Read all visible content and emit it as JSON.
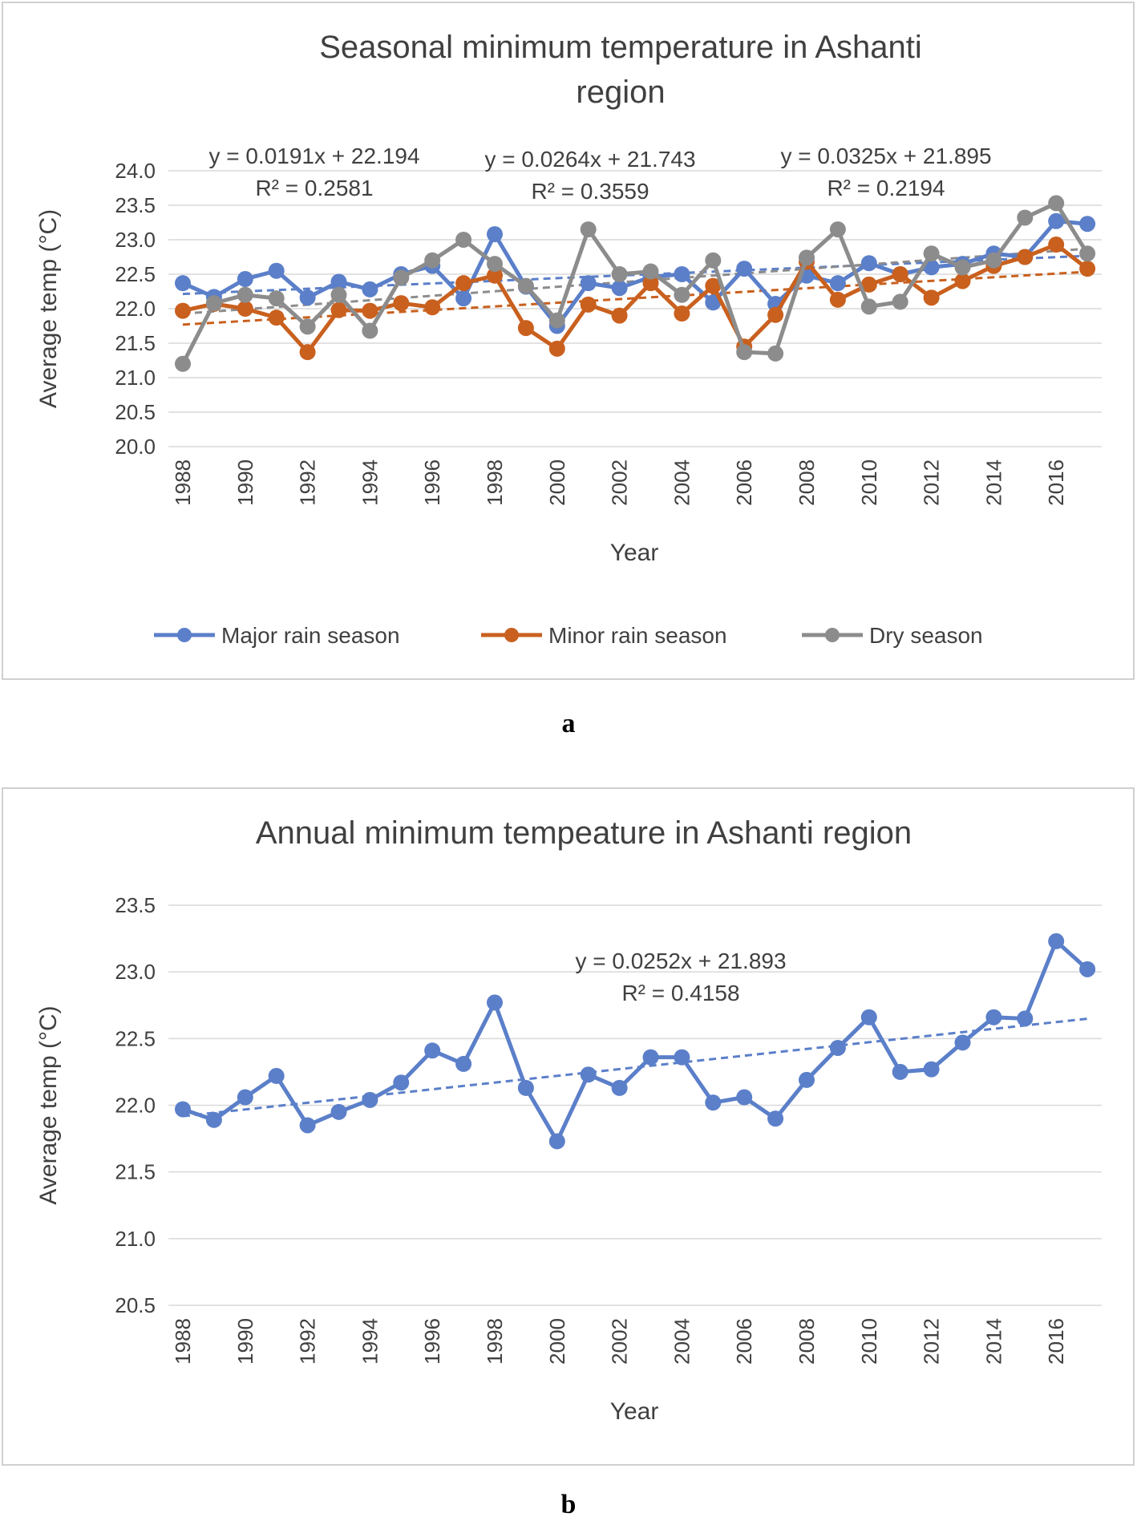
{
  "figure": {
    "label_a": "a",
    "label_b": "b"
  },
  "colors": {
    "major": "#5b7fc9",
    "minor": "#c9601e",
    "dry": "#8c8c8c",
    "grid": "#d9d9d9",
    "text": "#404040"
  },
  "chart_data": [
    {
      "type": "line",
      "title": "Seasonal minimum temperature in Ashanti region",
      "title_lines": [
        "Seasonal minimum temperature in Ashanti",
        "region"
      ],
      "xlabel": "Year",
      "ylabel": "Average temp (°C)",
      "ylim": [
        20.0,
        24.0
      ],
      "yticks": [
        "20.0",
        "20.5",
        "21.0",
        "21.5",
        "22.0",
        "22.5",
        "23.0",
        "23.5",
        "24.0"
      ],
      "grid": true,
      "legend_position": "bottom",
      "x": [
        1988,
        1989,
        1990,
        1991,
        1992,
        1993,
        1994,
        1995,
        1996,
        1997,
        1998,
        1999,
        2000,
        2001,
        2002,
        2003,
        2004,
        2005,
        2006,
        2007,
        2008,
        2009,
        2010,
        2011,
        2012,
        2013,
        2014,
        2015,
        2016,
        2017
      ],
      "xtick_labels": [
        "1988",
        "1990",
        "1992",
        "1994",
        "1996",
        "1998",
        "2000",
        "2002",
        "2004",
        "2006",
        "2008",
        "2010",
        "2012",
        "2014",
        "2016"
      ],
      "series": [
        {
          "name": "Major rain season",
          "color": "#5b7fc9",
          "values": [
            22.37,
            22.17,
            22.43,
            22.55,
            22.16,
            22.39,
            22.28,
            22.5,
            22.62,
            22.15,
            23.08,
            22.32,
            21.75,
            22.37,
            22.3,
            22.46,
            22.5,
            22.09,
            22.58,
            22.07,
            22.48,
            22.37,
            22.66,
            22.5,
            22.6,
            22.65,
            22.8,
            22.75,
            23.27,
            23.23
          ],
          "trendline": {
            "slope": 0.0191,
            "intercept": 22.194
          },
          "equation": "y = 0.0191x + 22.194",
          "r2": "R² = 0.2581"
        },
        {
          "name": "Minor rain season",
          "color": "#c9601e",
          "values": [
            21.97,
            22.07,
            22.0,
            21.87,
            21.37,
            21.98,
            21.97,
            22.08,
            22.02,
            22.37,
            22.48,
            21.72,
            21.42,
            22.06,
            21.9,
            22.37,
            21.93,
            22.33,
            21.45,
            21.91,
            22.68,
            22.13,
            22.35,
            22.5,
            22.16,
            22.4,
            22.62,
            22.75,
            22.93,
            22.58
          ],
          "trendline": {
            "slope": 0.0264,
            "intercept": 21.743
          },
          "equation": "y = 0.0264x + 21.743",
          "r2": "R² = 0.3559"
        },
        {
          "name": "Dry season",
          "color": "#8c8c8c",
          "values": [
            21.2,
            22.08,
            22.2,
            22.15,
            21.74,
            22.2,
            21.68,
            22.45,
            22.7,
            23.0,
            22.65,
            22.33,
            21.83,
            23.15,
            22.5,
            22.54,
            22.2,
            22.7,
            21.37,
            21.35,
            22.74,
            23.15,
            22.03,
            22.1,
            22.8,
            22.6,
            22.7,
            23.32,
            23.53,
            22.8
          ],
          "trendline": {
            "slope": 0.0325,
            "intercept": 21.895
          },
          "equation": "y = 0.0325x + 21.895",
          "r2": "R² = 0.2194"
        }
      ]
    },
    {
      "type": "line",
      "title": "Annual minimum tempeature in Ashanti region",
      "title_lines": [
        "Annual minimum tempeature in Ashanti region"
      ],
      "xlabel": "Year",
      "ylabel": "Average temp (°C)",
      "ylim": [
        20.5,
        23.5
      ],
      "yticks": [
        "20.5",
        "21.0",
        "21.5",
        "22.0",
        "22.5",
        "23.0",
        "23.5"
      ],
      "grid": true,
      "legend_position": "none",
      "x": [
        1988,
        1989,
        1990,
        1991,
        1992,
        1993,
        1994,
        1995,
        1996,
        1997,
        1998,
        1999,
        2000,
        2001,
        2002,
        2003,
        2004,
        2005,
        2006,
        2007,
        2008,
        2009,
        2010,
        2011,
        2012,
        2013,
        2014,
        2015,
        2016,
        2017
      ],
      "xtick_labels": [
        "1988",
        "1990",
        "1992",
        "1994",
        "1996",
        "1998",
        "2000",
        "2002",
        "2004",
        "2006",
        "2008",
        "2010",
        "2012",
        "2014",
        "2016"
      ],
      "series": [
        {
          "color": "#5b7fc9",
          "values": [
            21.97,
            21.89,
            22.06,
            22.22,
            21.85,
            21.95,
            22.04,
            22.17,
            22.41,
            22.31,
            22.77,
            22.13,
            21.73,
            22.23,
            22.13,
            22.36,
            22.36,
            22.02,
            22.06,
            21.9,
            22.19,
            22.43,
            22.66,
            22.25,
            22.27,
            22.47,
            22.66,
            22.65,
            23.23,
            23.02
          ],
          "trendline": {
            "slope": 0.0252,
            "intercept": 21.893
          },
          "equation": "y = 0.0252x + 21.893",
          "r2": "R² = 0.4158"
        }
      ]
    }
  ]
}
